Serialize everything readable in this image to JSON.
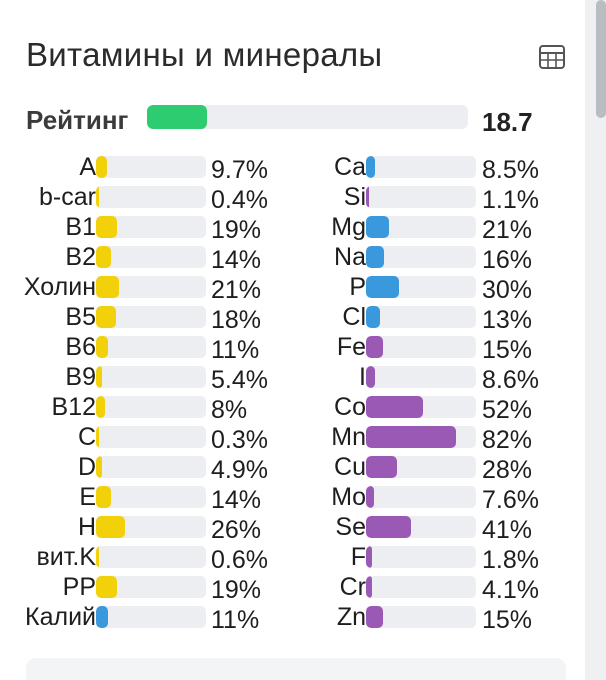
{
  "card": {
    "title": "Витамины и минералы",
    "table_icon": "table-grid-icon"
  },
  "rating": {
    "label": "Рейтинг",
    "value": "18.7",
    "fill_percent": 18.7,
    "color": "#2ecc71"
  },
  "colors": {
    "vitamin": "#f2d10b",
    "mineral_blue": "#3a98dc",
    "mineral_purple": "#9b59b6",
    "track": "#eceef1"
  },
  "vitamins": [
    {
      "label": "A",
      "value": "9.7%",
      "percent": 9.7,
      "color": "#f2d10b"
    },
    {
      "label": "b-car",
      "value": "0.4%",
      "percent": 0.4,
      "color": "#f2d10b"
    },
    {
      "label": "B1",
      "value": "19%",
      "percent": 19,
      "color": "#f2d10b"
    },
    {
      "label": "B2",
      "value": "14%",
      "percent": 14,
      "color": "#f2d10b"
    },
    {
      "label": "Холин",
      "value": "21%",
      "percent": 21,
      "color": "#f2d10b"
    },
    {
      "label": "B5",
      "value": "18%",
      "percent": 18,
      "color": "#f2d10b"
    },
    {
      "label": "B6",
      "value": "11%",
      "percent": 11,
      "color": "#f2d10b"
    },
    {
      "label": "B9",
      "value": "5.4%",
      "percent": 5.4,
      "color": "#f2d10b"
    },
    {
      "label": "B12",
      "value": "8%",
      "percent": 8,
      "color": "#f2d10b"
    },
    {
      "label": "C",
      "value": "0.3%",
      "percent": 0.3,
      "color": "#f2d10b"
    },
    {
      "label": "D",
      "value": "4.9%",
      "percent": 4.9,
      "color": "#f2d10b"
    },
    {
      "label": "E",
      "value": "14%",
      "percent": 14,
      "color": "#f2d10b"
    },
    {
      "label": "H",
      "value": "26%",
      "percent": 26,
      "color": "#f2d10b"
    },
    {
      "label": "вит.K",
      "value": "0.6%",
      "percent": 0.6,
      "color": "#f2d10b"
    },
    {
      "label": "PP",
      "value": "19%",
      "percent": 19,
      "color": "#f2d10b"
    },
    {
      "label": "Калий",
      "value": "11%",
      "percent": 11,
      "color": "#3a98dc"
    }
  ],
  "minerals": [
    {
      "label": "Ca",
      "value": "8.5%",
      "percent": 8.5,
      "color": "#3a98dc"
    },
    {
      "label": "Si",
      "value": "1.1%",
      "percent": 1.1,
      "color": "#9b59b6"
    },
    {
      "label": "Mg",
      "value": "21%",
      "percent": 21,
      "color": "#3a98dc"
    },
    {
      "label": "Na",
      "value": "16%",
      "percent": 16,
      "color": "#3a98dc"
    },
    {
      "label": "P",
      "value": "30%",
      "percent": 30,
      "color": "#3a98dc"
    },
    {
      "label": "Cl",
      "value": "13%",
      "percent": 13,
      "color": "#3a98dc"
    },
    {
      "label": "Fe",
      "value": "15%",
      "percent": 15,
      "color": "#9b59b6"
    },
    {
      "label": "I",
      "value": "8.6%",
      "percent": 8.6,
      "color": "#9b59b6"
    },
    {
      "label": "Co",
      "value": "52%",
      "percent": 52,
      "color": "#9b59b6"
    },
    {
      "label": "Mn",
      "value": "82%",
      "percent": 82,
      "color": "#9b59b6"
    },
    {
      "label": "Cu",
      "value": "28%",
      "percent": 28,
      "color": "#9b59b6"
    },
    {
      "label": "Mo",
      "value": "7.6%",
      "percent": 7.6,
      "color": "#9b59b6"
    },
    {
      "label": "Se",
      "value": "41%",
      "percent": 41,
      "color": "#9b59b6"
    },
    {
      "label": "F",
      "value": "1.8%",
      "percent": 1.8,
      "color": "#9b59b6"
    },
    {
      "label": "Cr",
      "value": "4.1%",
      "percent": 4.1,
      "color": "#9b59b6"
    },
    {
      "label": "Zn",
      "value": "15%",
      "percent": 15,
      "color": "#9b59b6"
    }
  ]
}
